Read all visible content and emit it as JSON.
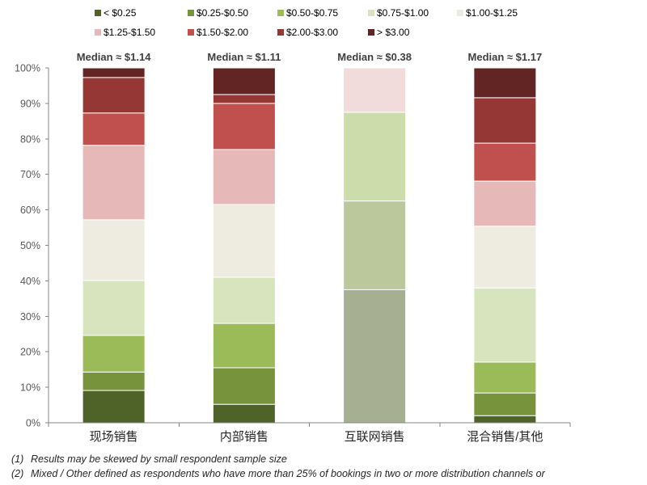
{
  "chart_data": {
    "type": "bar",
    "stacked": true,
    "categories": [
      "现场销售",
      "内部销售",
      "互联网销售",
      "混合销售/其他"
    ],
    "annotations": [
      "Median ≈ $1.14",
      "Median ≈ $1.11",
      "Median ≈ $0.38",
      "Median ≈ $1.17"
    ],
    "series": [
      {
        "name": "< $0.25",
        "color": "#4f6228",
        "values": [
          9.1,
          5.2,
          37.5,
          2.0
        ]
      },
      {
        "name": "$0.25-$0.50",
        "color": "#77933c",
        "values": [
          5.2,
          10.3,
          25.0,
          6.4
        ]
      },
      {
        "name": "$0.50-$0.75",
        "color": "#9bbb59",
        "values": [
          10.3,
          12.5,
          25.0,
          8.7
        ]
      },
      {
        "name": "$0.75-$1.00",
        "color": "#d7e4bd",
        "values": [
          15.5,
          13.0,
          0,
          20.9
        ]
      },
      {
        "name": "$1.00-$1.25",
        "color": "#eeece1",
        "values": [
          17.1,
          20.5,
          0,
          17.4
        ]
      },
      {
        "name": "$1.25-$1.50",
        "color": "#e6b9b8",
        "values": [
          21.0,
          15.5,
          12.5,
          12.7
        ]
      },
      {
        "name": "$1.50-$2.00",
        "color": "#c0504d",
        "values": [
          9.1,
          13.0,
          0,
          10.7
        ]
      },
      {
        "name": "$2.00-$3.00",
        "color": "#953735",
        "values": [
          10.0,
          2.5,
          0,
          12.8
        ]
      },
      {
        "name": "> $3.00",
        "color": "#632523",
        "values": [
          2.7,
          7.5,
          0,
          8.4
        ]
      }
    ],
    "yticks": [
      {
        "value": 0,
        "label": "0%"
      },
      {
        "value": 10,
        "label": "10%"
      },
      {
        "value": 20,
        "label": "20%"
      },
      {
        "value": 30,
        "label": "30%"
      },
      {
        "value": 40,
        "label": "40%"
      },
      {
        "value": 50,
        "label": "50%"
      },
      {
        "value": 60,
        "label": "60%"
      },
      {
        "value": 70,
        "label": "70%"
      },
      {
        "value": 80,
        "label": "80%"
      },
      {
        "value": 90,
        "label": "90%"
      },
      {
        "value": 100,
        "label": "100%"
      }
    ],
    "ylim": [
      0,
      100
    ],
    "grid": false,
    "legend_position": "top"
  },
  "footnotes": [
    {
      "marker": "(1)",
      "text": "Results may be skewed by small respondent sample size"
    },
    {
      "marker": "(2)",
      "text": "Mixed / Other defined as respondents who have more than 25% of bookings in two or more distribution channels or"
    }
  ]
}
